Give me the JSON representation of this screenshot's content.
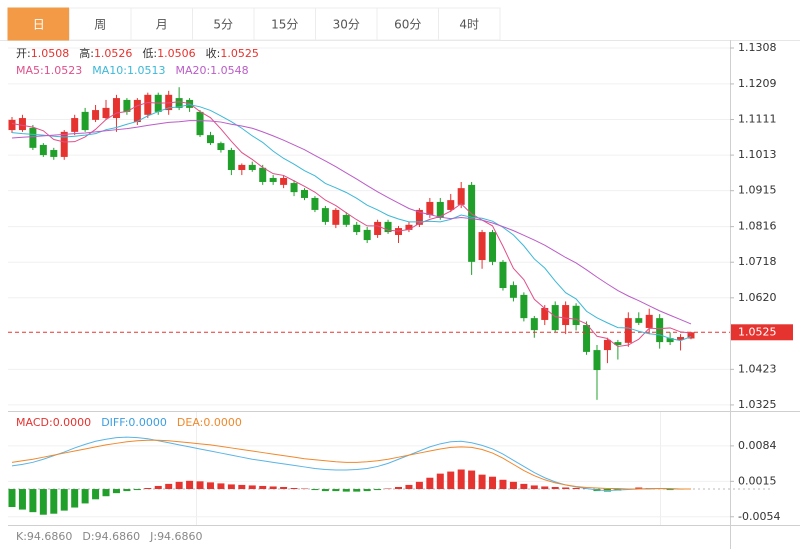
{
  "tabs": [
    "日",
    "周",
    "月",
    "5分",
    "15分",
    "30分",
    "60分",
    "4时"
  ],
  "active_tab": 0,
  "chart_data": [
    {
      "type": "candlestick",
      "up_color": "#e5332f",
      "down_color": "#20a02a",
      "header": [
        [
          {
            "label": "开:",
            "value": 1.0508,
            "label_color": "#333333",
            "color": "#e5332f"
          },
          {
            "label": "高:",
            "value": 1.0526,
            "label_color": "#333333",
            "color": "#e5332f"
          },
          {
            "label": "低:",
            "value": 1.0506,
            "label_color": "#333333",
            "color": "#e5332f"
          },
          {
            "label": "收:",
            "value": 1.0525,
            "label_color": "#333333",
            "color": "#e5332f"
          }
        ],
        [
          {
            "label": "MA5:",
            "value": 1.0523,
            "label_color": "#e0508a",
            "color": "#e0508a"
          },
          {
            "label": "MA10:",
            "value": 1.0513,
            "label_color": "#3cb8d8",
            "color": "#3cb8d8"
          },
          {
            "label": "MA20:",
            "value": 1.0548,
            "label_color": "#bb5cc8",
            "color": "#bb5cc8"
          }
        ]
      ],
      "open": [
        1.1082,
        1.1082,
        1.1088,
        1.1041,
        1.1027,
        1.1008,
        1.1077,
        1.1132,
        1.111,
        1.1115,
        1.1115,
        1.1165,
        1.1104,
        1.1124,
        1.1179,
        1.1137,
        1.117,
        1.1165,
        1.1132,
        1.1068,
        1.1046,
        1.1027,
        1.0972,
        1.0986,
        1.0978,
        1.095,
        1.0931,
        1.0936,
        1.0917,
        1.0895,
        1.0867,
        1.0821,
        1.0848,
        1.0821,
        1.0807,
        1.0793,
        1.0829,
        1.0793,
        1.0807,
        1.0821,
        1.0848,
        1.0884,
        1.0862,
        1.0876,
        1.0931,
        1.0724,
        1.0801,
        1.0719,
        1.0655,
        1.0628,
        1.0564,
        1.0559,
        1.06,
        1.0545,
        1.0598,
        1.0545,
        1.0476,
        1.0476,
        1.0498,
        1.0496,
        1.0564,
        1.0537,
        1.0564,
        1.0509,
        1.0504,
        1.0508
      ],
      "high": [
        1.1118,
        1.1124,
        1.1096,
        1.1046,
        1.1033,
        1.1082,
        1.1124,
        1.1143,
        1.1151,
        1.1165,
        1.1179,
        1.117,
        1.117,
        1.1185,
        1.1185,
        1.119,
        1.12,
        1.117,
        1.1137,
        1.1077,
        1.105,
        1.1033,
        1.099,
        1.0995,
        1.0986,
        1.0958,
        1.0958,
        1.0944,
        1.0922,
        1.09,
        1.0873,
        1.0867,
        1.0856,
        1.0829,
        1.0815,
        1.0835,
        1.0835,
        1.0818,
        1.0829,
        1.0867,
        1.0895,
        1.0895,
        1.0906,
        1.0939,
        1.0939,
        1.0807,
        1.0807,
        1.0724,
        1.0665,
        1.0635,
        1.057,
        1.06,
        1.061,
        1.061,
        1.0605,
        1.0555,
        1.049,
        1.051,
        1.0504,
        1.058,
        1.058,
        1.059,
        1.0575,
        1.0525,
        1.052,
        1.0526
      ],
      "low": [
        1.1074,
        1.1077,
        1.1027,
        1.1008,
        1.1,
        1.1,
        1.1068,
        1.1077,
        1.1104,
        1.111,
        1.1077,
        1.1124,
        1.1096,
        1.1115,
        1.1124,
        1.1124,
        1.1137,
        1.1132,
        1.1063,
        1.1041,
        1.102,
        1.0958,
        1.0958,
        1.0967,
        1.0931,
        1.0931,
        1.0922,
        1.09,
        1.0889,
        1.0856,
        1.0821,
        1.0812,
        1.0815,
        1.0793,
        1.0771,
        1.0785,
        1.0796,
        1.0771,
        1.0801,
        1.0815,
        1.084,
        1.0835,
        1.0856,
        1.0867,
        1.0683,
        1.07,
        1.071,
        1.064,
        1.061,
        1.0555,
        1.051,
        1.0545,
        1.0525,
        1.052,
        1.053,
        1.0463,
        1.0339,
        1.044,
        1.045,
        1.0485,
        1.0545,
        1.052,
        1.048,
        1.049,
        1.0475,
        1.0506
      ],
      "close": [
        1.111,
        1.1115,
        1.1033,
        1.1013,
        1.1008,
        1.1077,
        1.1115,
        1.1082,
        1.1137,
        1.1143,
        1.117,
        1.1132,
        1.1165,
        1.1179,
        1.1132,
        1.1179,
        1.1143,
        1.1143,
        1.1068,
        1.1046,
        1.1027,
        1.0972,
        1.0986,
        1.0972,
        1.0939,
        1.0939,
        1.095,
        1.0911,
        1.0895,
        1.0862,
        1.0829,
        1.0862,
        1.0821,
        1.0801,
        1.0779,
        1.0829,
        1.0801,
        1.0812,
        1.0821,
        1.0862,
        1.0884,
        1.084,
        1.0889,
        1.0922,
        1.0719,
        1.0801,
        1.0719,
        1.0647,
        1.062,
        1.0564,
        1.0531,
        1.0592,
        1.0531,
        1.06,
        1.0545,
        1.0471,
        1.0421,
        1.0504,
        1.049,
        1.0564,
        1.0551,
        1.0573,
        1.0498,
        1.0498,
        1.0512,
        1.0525
      ],
      "lines": [
        {
          "name": "MA5",
          "color": "#e0508a",
          "values": [
            1.11,
            1.1095,
            1.109,
            1.108,
            1.1056,
            1.1049,
            1.105,
            1.1063,
            1.1084,
            1.1111,
            1.1129,
            1.1133,
            1.1149,
            1.1158,
            1.1156,
            1.1157,
            1.116,
            1.1155,
            1.1133,
            1.1116,
            1.1085,
            1.1051,
            1.102,
            1.1001,
            1.0979,
            1.0962,
            1.0957,
            1.0942,
            1.0927,
            1.0911,
            1.0889,
            1.0874,
            1.0854,
            1.0835,
            1.0818,
            1.0818,
            1.0806,
            1.0804,
            1.0808,
            1.0825,
            1.0836,
            1.0844,
            1.0859,
            1.0879,
            1.0851,
            1.0834,
            1.0818,
            1.0762,
            1.0701,
            1.067,
            1.0616,
            1.0591,
            1.0568,
            1.0564,
            1.0561,
            1.0548,
            1.0514,
            1.0508,
            1.0486,
            1.049,
            1.0506,
            1.0536,
            1.0535,
            1.0537,
            1.0526,
            1.0523
          ]
        },
        {
          "name": "MA10",
          "color": "#3cb8d8",
          "values": [
            1.1075,
            1.1072,
            1.107,
            1.1068,
            1.1065,
            1.1063,
            1.1065,
            1.1068,
            1.1072,
            1.1083,
            1.1089,
            1.1098,
            1.1106,
            1.1121,
            1.1133,
            1.1143,
            1.1146,
            1.1152,
            1.1146,
            1.1136,
            1.1121,
            1.1105,
            1.1087,
            1.1066,
            1.1048,
            1.1024,
            1.1004,
            1.0988,
            1.097,
            1.0956,
            1.0935,
            1.0923,
            1.091,
            1.0894,
            1.0875,
            1.0862,
            1.0847,
            1.0837,
            1.0829,
            1.0829,
            1.0831,
            1.0829,
            1.0836,
            1.0848,
            1.0842,
            1.0839,
            1.0831,
            1.0814,
            1.0793,
            1.0763,
            1.0727,
            1.0702,
            1.0666,
            1.0634,
            1.0617,
            1.0583,
            1.0565,
            1.0551,
            1.0538,
            1.0537,
            1.0528,
            1.0521,
            1.0518,
            1.0508,
            1.0502,
            1.0513
          ]
        },
        {
          "name": "MA20",
          "color": "#bb5cc8",
          "values": [
            1.106,
            1.1062,
            1.1064,
            1.1066,
            1.1068,
            1.107,
            1.1072,
            1.1074,
            1.1077,
            1.108,
            1.1083,
            1.1086,
            1.109,
            1.1095,
            1.1099,
            1.1103,
            1.1105,
            1.1108,
            1.1108,
            1.1107,
            1.1104,
            1.1098,
            1.1093,
            1.1087,
            1.1077,
            1.1066,
            1.1054,
            1.1041,
            1.1028,
            1.1012,
            1.0997,
            1.0981,
            1.0964,
            1.0947,
            1.0929,
            1.0912,
            1.0896,
            1.0881,
            1.0866,
            1.0856,
            1.0849,
            1.0842,
            1.0838,
            1.0841,
            1.0838,
            1.0834,
            1.0826,
            1.0816,
            1.0805,
            1.0792,
            1.0779,
            1.0765,
            1.0748,
            1.0731,
            1.0716,
            1.0697,
            1.0677,
            1.0658,
            1.064,
            1.0625,
            1.0612,
            1.0598,
            1.0584,
            1.0572,
            1.056,
            1.0548
          ]
        }
      ],
      "last_price": 1.0525,
      "ylim": [
        1.0311,
        1.133
      ],
      "yticks": [
        1.1308,
        1.1209,
        1.1111,
        1.1013,
        1.0915,
        1.0816,
        1.0718,
        {
          "value": 1.062,
          "label": "1.0620"
        },
        1.0423,
        1.0325
      ],
      "grid": true
    },
    {
      "type": "macd",
      "up_color": "#e5332f",
      "down_color": "#20a02a",
      "header": [
        [
          {
            "label": "MACD:",
            "value": 0,
            "value_label": "0.0000",
            "label_color": "#e5332f",
            "color": "#e5332f"
          },
          {
            "label": "DIFF:",
            "value": 0,
            "value_label": "0.0000",
            "label_color": "#3c9ee0",
            "color": "#3c9ee0"
          },
          {
            "label": "DEA:",
            "value": 0,
            "value_label": "0.0000",
            "label_color": "#f0882c",
            "color": "#f0882c"
          }
        ]
      ],
      "values": [
        -0.0035,
        -0.004,
        -0.0045,
        -0.005,
        -0.0048,
        -0.0042,
        -0.0036,
        -0.0028,
        -0.002,
        -0.0014,
        -0.0008,
        -0.0004,
        -0.0002,
        0.0002,
        0.0006,
        0.001,
        0.0014,
        0.0016,
        0.0015,
        0.0013,
        0.0011,
        0.0009,
        0.0008,
        0.0007,
        0.0006,
        0.0005,
        0.0004,
        0.0002,
        0.0001,
        -0.0002,
        -0.0004,
        -0.0004,
        -0.0005,
        -0.0005,
        -0.0004,
        -0.0002,
        0.0001,
        0.0004,
        0.0008,
        0.0014,
        0.0022,
        0.003,
        0.0034,
        0.0038,
        0.0036,
        0.0028,
        0.0024,
        0.0018,
        0.0014,
        0.001,
        0.0007,
        0.0005,
        0.0004,
        0.0003,
        0.0002,
        0.0001,
        -0.0004,
        -0.0005,
        -0.0003,
        0.0001,
        0.0003,
        0.0002,
        0.0001,
        -0.0002,
        -0.0001,
        0
      ],
      "lines": [
        {
          "name": "DIFF",
          "color": "#5ab4e6",
          "values": [
            0.0045,
            0.0048,
            0.0052,
            0.0058,
            0.0065,
            0.0072,
            0.008,
            0.0087,
            0.0093,
            0.0097,
            0.01,
            0.0101,
            0.01,
            0.0098,
            0.0094,
            0.009,
            0.0086,
            0.0082,
            0.0078,
            0.0074,
            0.007,
            0.0066,
            0.0062,
            0.0058,
            0.0055,
            0.0052,
            0.0049,
            0.0046,
            0.0043,
            0.004,
            0.0038,
            0.0037,
            0.0037,
            0.0038,
            0.004,
            0.0044,
            0.005,
            0.0058,
            0.0066,
            0.0074,
            0.0082,
            0.0088,
            0.0092,
            0.0093,
            0.009,
            0.0085,
            0.0078,
            0.0068,
            0.0056,
            0.0044,
            0.0032,
            0.0022,
            0.0014,
            0.0008,
            0.0004,
            0.0001,
            -0.0002,
            -0.0003,
            -0.0002,
            -0.0001,
            0,
            0.0001,
            0.0001,
            0,
            0,
            0
          ]
        },
        {
          "name": "DEA",
          "color": "#f0882c",
          "values": [
            0.0052,
            0.0055,
            0.0058,
            0.0062,
            0.0066,
            0.007,
            0.0074,
            0.0078,
            0.0082,
            0.0086,
            0.0089,
            0.0092,
            0.0094,
            0.0095,
            0.0095,
            0.0094,
            0.0092,
            0.009,
            0.0088,
            0.0086,
            0.0083,
            0.008,
            0.0077,
            0.0074,
            0.0071,
            0.0068,
            0.0065,
            0.0062,
            0.0059,
            0.0057,
            0.0055,
            0.0053,
            0.0052,
            0.0052,
            0.0053,
            0.0055,
            0.0058,
            0.0062,
            0.0066,
            0.007,
            0.0074,
            0.0078,
            0.0081,
            0.0082,
            0.0081,
            0.0077,
            0.007,
            0.006,
            0.0048,
            0.0036,
            0.0026,
            0.0018,
            0.0012,
            0.0008,
            0.0005,
            0.0003,
            0.0002,
            0.0001,
            0.0001,
            0,
            0,
            0,
            0.0001,
            0.0001,
            0,
            0
          ]
        }
      ],
      "ylim": [
        -0.007,
        0.0148
      ],
      "yticks": [
        0.0084,
        0.0015,
        -0.0054
      ],
      "grid": true
    }
  ],
  "kdj_header": [
    {
      "label": "K:",
      "value": 94.686,
      "value_label": "94.6860",
      "label_color": "#888888",
      "color": "#888888"
    },
    {
      "label": "D:",
      "value": 94.686,
      "value_label": "94.6860",
      "label_color": "#888888",
      "color": "#888888"
    },
    {
      "label": "J:",
      "value": 94.686,
      "value_label": "94.6860",
      "label_color": "#888888",
      "color": "#888888"
    }
  ]
}
